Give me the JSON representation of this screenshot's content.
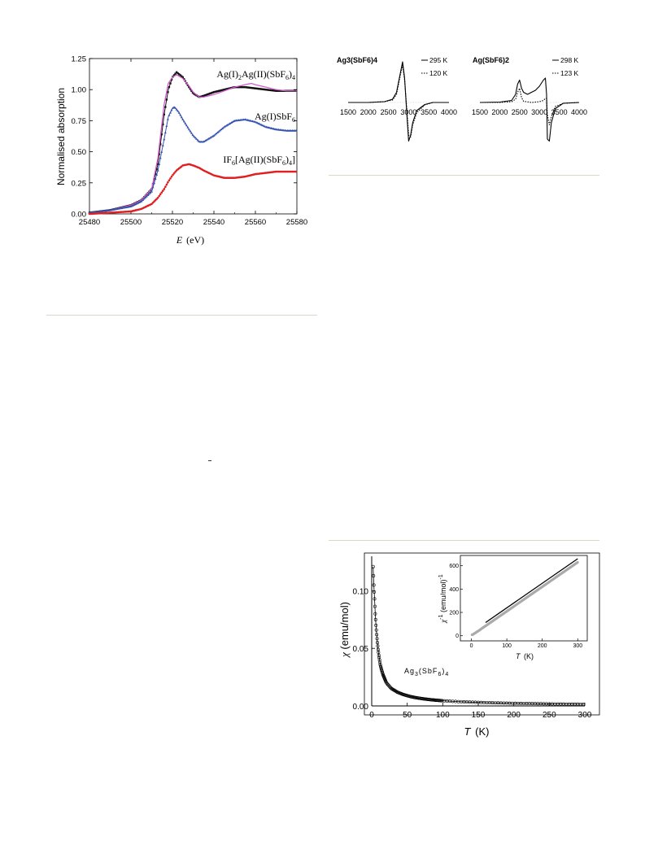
{
  "chart_data": [
    {
      "type": "scatter",
      "xlabel": "E (eV)",
      "xlabel_italic": "E",
      "xlabel_unit": "(eV)",
      "ylabel": "Normalised absorption",
      "xlim": [
        25480,
        25580
      ],
      "ylim": [
        0.0,
        1.25
      ],
      "x_ticks": [
        "25480",
        "25500",
        "25520",
        "25540",
        "25560",
        "25580"
      ],
      "y_ticks": [
        "0.00",
        "0.25",
        "0.50",
        "0.75",
        "1.00",
        "1.25"
      ],
      "annotations": [
        "Ag(I)2Ag(II)(SbF6)4",
        "Ag(I)SbF6",
        "IF6[Ag(II)(SbF6)4]"
      ],
      "series": [
        {
          "color": "#111111",
          "marker": "square",
          "x": [
            25480,
            25490,
            25500,
            25505,
            25510,
            25513,
            25516,
            25518,
            25520,
            25522,
            25525,
            25528,
            25530,
            25533,
            25535,
            25540,
            25545,
            25550,
            25555,
            25560,
            25565,
            25570,
            25575,
            25580
          ],
          "y": [
            0.01,
            0.03,
            0.07,
            0.11,
            0.2,
            0.4,
            0.8,
            1.0,
            1.1,
            1.14,
            1.1,
            1.02,
            0.97,
            0.94,
            0.95,
            0.98,
            1.0,
            1.02,
            1.02,
            1.01,
            1.0,
            0.99,
            0.99,
            0.99
          ]
        },
        {
          "color": "#d05ac8",
          "marker": "line",
          "x": [
            25480,
            25490,
            25500,
            25505,
            25510,
            25513,
            25516,
            25518,
            25520,
            25522,
            25525,
            25528,
            25530,
            25533,
            25535,
            25540,
            25545,
            25550,
            25555,
            25558,
            25560,
            25565,
            25570,
            25575,
            25580
          ],
          "y": [
            0.01,
            0.03,
            0.07,
            0.11,
            0.2,
            0.45,
            0.88,
            1.05,
            1.1,
            1.12,
            1.09,
            1.03,
            0.98,
            0.94,
            0.94,
            0.96,
            0.99,
            1.02,
            1.04,
            1.05,
            1.04,
            1.02,
            1.0,
            0.99,
            0.99
          ]
        },
        {
          "color": "#3652b0",
          "marker": "triangle",
          "x": [
            25480,
            25490,
            25500,
            25505,
            25510,
            25513,
            25516,
            25518,
            25520,
            25521,
            25523,
            25525,
            25528,
            25530,
            25533,
            25535,
            25540,
            25545,
            25550,
            25555,
            25560,
            25565,
            25570,
            25575,
            25580
          ],
          "y": [
            0.01,
            0.03,
            0.06,
            0.1,
            0.18,
            0.35,
            0.6,
            0.78,
            0.85,
            0.86,
            0.82,
            0.76,
            0.68,
            0.63,
            0.58,
            0.58,
            0.63,
            0.7,
            0.75,
            0.76,
            0.74,
            0.7,
            0.68,
            0.67,
            0.67
          ]
        },
        {
          "color": "#e02020",
          "marker": "circle",
          "x": [
            25480,
            25490,
            25500,
            25505,
            25510,
            25513,
            25516,
            25518,
            25520,
            25522,
            25525,
            25528,
            25530,
            25533,
            25535,
            25540,
            25545,
            25550,
            25555,
            25560,
            25565,
            25570,
            25575,
            25580
          ],
          "y": [
            0.0,
            0.01,
            0.02,
            0.04,
            0.08,
            0.13,
            0.2,
            0.26,
            0.31,
            0.35,
            0.39,
            0.4,
            0.39,
            0.37,
            0.35,
            0.31,
            0.29,
            0.29,
            0.3,
            0.32,
            0.33,
            0.34,
            0.34,
            0.34
          ]
        }
      ]
    },
    {
      "type": "line",
      "title": "Ag3(SbF6)4",
      "x_ticks": [
        "1500",
        "2000",
        "2500",
        "3000",
        "3500",
        "4000"
      ],
      "xlim": [
        1500,
        4000
      ],
      "legend": [
        "295 K",
        "120 K"
      ],
      "series": [
        {
          "name": "295 K",
          "style": "solid",
          "x": [
            1500,
            2000,
            2400,
            2600,
            2700,
            2800,
            2850,
            2900,
            2950,
            3000,
            3050,
            3100,
            3200,
            3400,
            3600,
            4000
          ],
          "y": [
            0,
            0,
            0.02,
            0.08,
            0.25,
            0.75,
            1.0,
            0.6,
            -0.2,
            -0.95,
            -0.8,
            -0.5,
            -0.2,
            -0.05,
            0,
            0
          ]
        },
        {
          "name": "120 K",
          "style": "dotted",
          "x": [
            1500,
            2000,
            2400,
            2600,
            2700,
            2800,
            2850,
            2900,
            2950,
            3000,
            3050,
            3100,
            3200,
            3400,
            3600,
            4000
          ],
          "y": [
            0,
            0,
            0.02,
            0.06,
            0.2,
            0.7,
            0.92,
            0.55,
            -0.1,
            -0.8,
            -0.85,
            -0.55,
            -0.25,
            -0.06,
            0,
            0
          ]
        }
      ]
    },
    {
      "type": "line",
      "title": "Ag(SbF6)2",
      "x_ticks": [
        "1500",
        "2000",
        "2500",
        "3000",
        "3500",
        "4000"
      ],
      "xlim": [
        1500,
        4000
      ],
      "legend": [
        "298 K",
        "123 K"
      ],
      "series": [
        {
          "name": "298 K",
          "style": "solid",
          "x": [
            1500,
            2000,
            2300,
            2400,
            2450,
            2500,
            2550,
            2600,
            2700,
            2900,
            3000,
            3100,
            3150,
            3180,
            3200,
            3250,
            3300,
            3400,
            3600,
            4000
          ],
          "y": [
            0,
            0.01,
            0.05,
            0.2,
            0.45,
            0.55,
            0.35,
            0.25,
            0.2,
            0.3,
            0.4,
            0.55,
            0.6,
            0.2,
            -0.9,
            -0.95,
            -0.5,
            -0.15,
            -0.02,
            0
          ]
        },
        {
          "name": "123 K",
          "style": "dotted",
          "x": [
            1500,
            2000,
            2300,
            2400,
            2450,
            2500,
            2550,
            2600,
            2800,
            3000,
            3100,
            3150,
            3180,
            3200,
            3250,
            3300,
            3400,
            3600,
            4000
          ],
          "y": [
            0,
            0,
            0.02,
            0.08,
            0.25,
            0.35,
            0.12,
            0.03,
            0,
            0.02,
            0.05,
            0.1,
            0.1,
            -0.3,
            -0.55,
            -0.35,
            -0.1,
            -0.02,
            0
          ]
        }
      ]
    },
    {
      "type": "scatter",
      "xlabel": "T (K)",
      "xlabel_italic": "T",
      "xlabel_unit": "(K)",
      "ylabel": "χ (emu/mol)",
      "annotation": "Ag3(SbF6)4",
      "xlim": [
        0,
        300
      ],
      "ylim": [
        0.0,
        0.13
      ],
      "x_ticks": [
        "0",
        "50",
        "100",
        "150",
        "200",
        "250",
        "300"
      ],
      "y_ticks": [
        "0.00",
        "0.05",
        "0.10"
      ],
      "series": [
        {
          "marker": "open-circle",
          "x": [
            2,
            3,
            4,
            5,
            6,
            7,
            8,
            9,
            10,
            12,
            14,
            16,
            18,
            20,
            22,
            25,
            28,
            32,
            36,
            40,
            45,
            50,
            55,
            60,
            70,
            80,
            90,
            100,
            120,
            140,
            160,
            180,
            200,
            220,
            240,
            260,
            280,
            300
          ],
          "y": [
            0.121,
            0.105,
            0.093,
            0.08,
            0.07,
            0.062,
            0.055,
            0.049,
            0.044,
            0.036,
            0.031,
            0.027,
            0.024,
            0.021,
            0.019,
            0.017,
            0.015,
            0.0135,
            0.012,
            0.011,
            0.0098,
            0.0089,
            0.0081,
            0.0074,
            0.0064,
            0.0056,
            0.005,
            0.0045,
            0.0038,
            0.0033,
            0.0029,
            0.0026,
            0.0023,
            0.0021,
            0.0019,
            0.0017,
            0.0016,
            0.0015
          ]
        }
      ],
      "inset": {
        "xlabel": "T (K)",
        "xlabel_italic": "T",
        "xlabel_unit": "(K)",
        "ylabel": "χ⁻¹ (emu/mol)⁻¹",
        "xlim": [
          -15,
          320
        ],
        "ylim": [
          -30,
          660
        ],
        "x_ticks": [
          "0",
          "100",
          "200",
          "300"
        ],
        "y_ticks": [
          "0",
          "200",
          "400",
          "600"
        ],
        "fit": {
          "x": [
            40,
            300
          ],
          "y": [
            113,
            660
          ]
        },
        "data": {
          "x": [
            2,
            4,
            6,
            8,
            10,
            12,
            15,
            18,
            20,
            25,
            30,
            35,
            40,
            50,
            60,
            80,
            100,
            120,
            150,
            180,
            200,
            220,
            250,
            280,
            300
          ],
          "y": [
            8,
            10,
            14,
            18,
            22,
            26,
            32,
            38,
            42,
            52,
            64,
            74,
            84,
            105,
            126,
            168,
            210,
            252,
            315,
            378,
            420,
            462,
            525,
            588,
            630
          ]
        }
      }
    }
  ]
}
